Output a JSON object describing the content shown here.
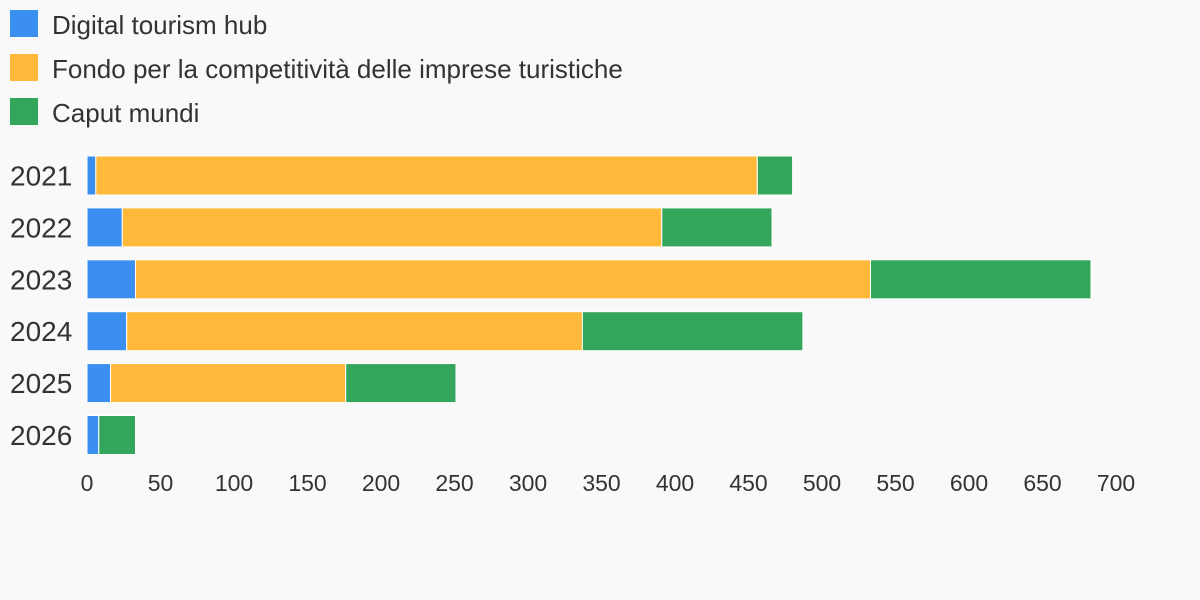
{
  "chart_data": {
    "type": "bar",
    "orientation": "horizontal",
    "stacked": true,
    "categories": [
      "2021",
      "2022",
      "2023",
      "2024",
      "2025",
      "2026"
    ],
    "series": [
      {
        "name": "Digital tourism hub",
        "color": "#3a8ff0",
        "values": [
          6,
          24,
          33,
          27,
          16,
          8
        ]
      },
      {
        "name": "Fondo per la competitività delle imprese turistiche",
        "color": "#ffb93a",
        "values": [
          450,
          367,
          500,
          310,
          160,
          0
        ]
      },
      {
        "name": "Caput mundi",
        "color": "#34a65b",
        "values": [
          24,
          75,
          150,
          150,
          75,
          25
        ]
      }
    ],
    "xlim": [
      0,
      700
    ],
    "xticks": [
      0,
      50,
      100,
      150,
      200,
      250,
      300,
      350,
      400,
      450,
      500,
      550,
      600,
      650,
      700
    ],
    "title": "",
    "xlabel": "",
    "ylabel": "",
    "legend_position": "top-left",
    "grid": false
  }
}
